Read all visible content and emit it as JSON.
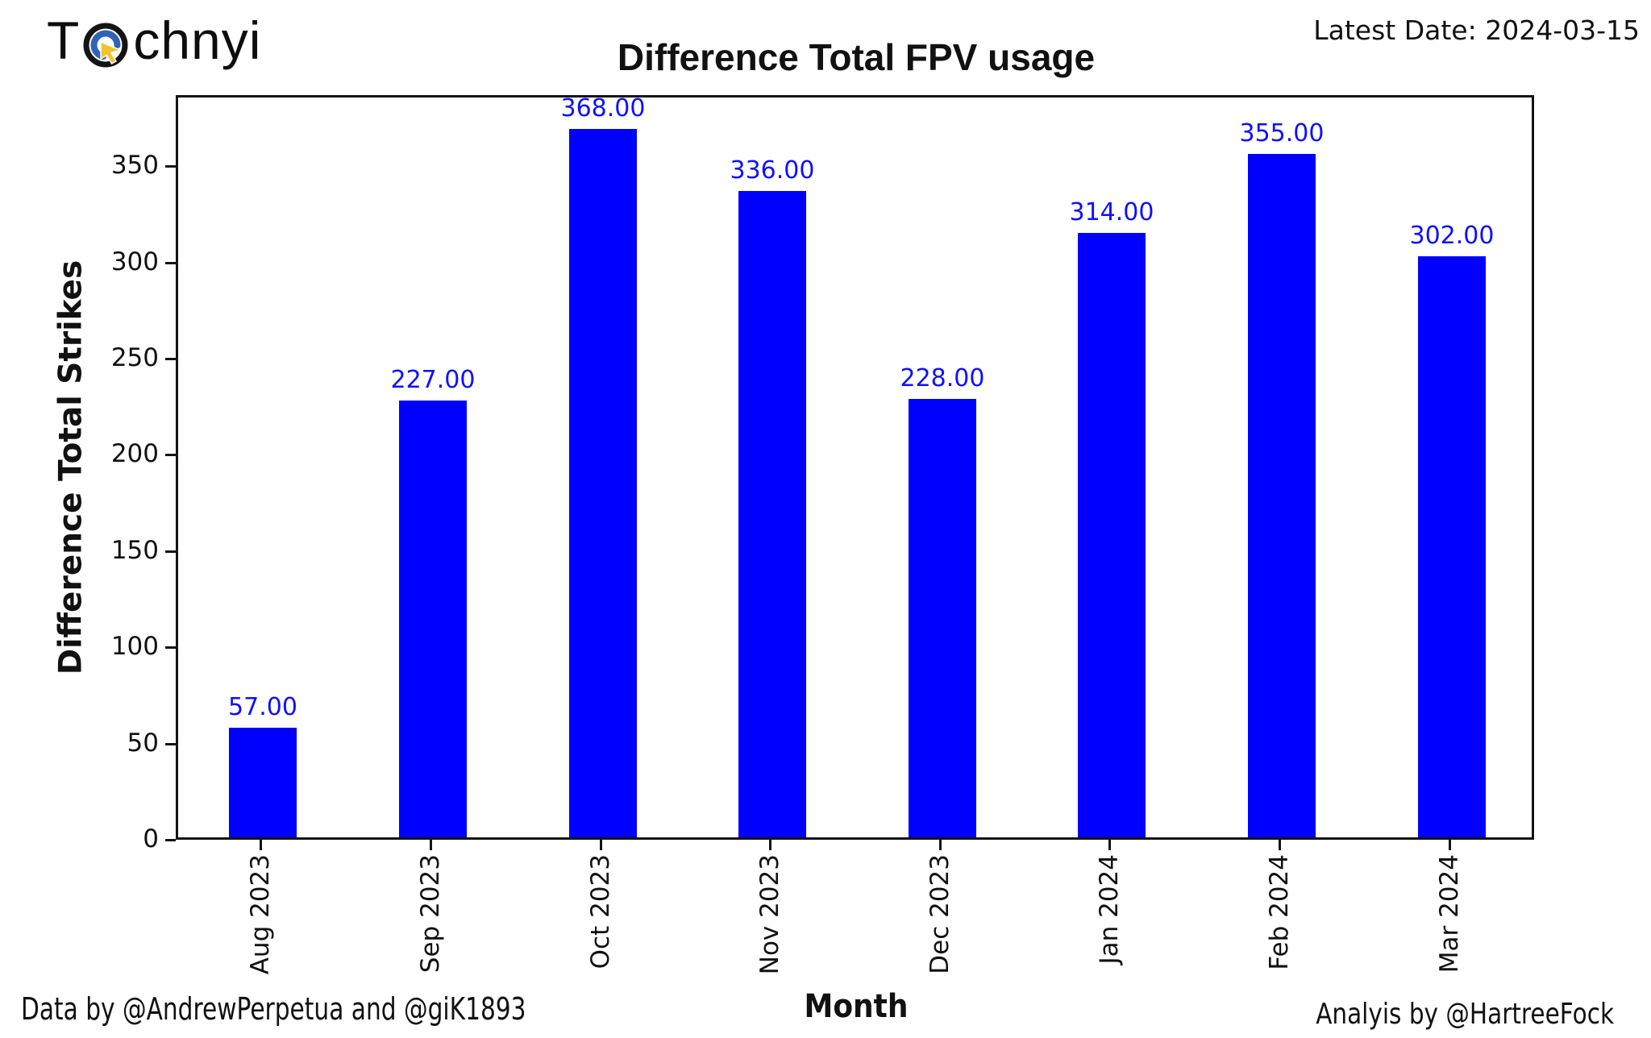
{
  "branding": {
    "logo_prefix": "T",
    "logo_suffix": "chnyi",
    "logo_icon": "target-cursor-icon"
  },
  "header": {
    "latest_date": "Latest Date: 2024-03-15"
  },
  "chart_data": {
    "type": "bar",
    "title": "Difference Total FPV usage",
    "xlabel": "Month",
    "ylabel": "Difference Total Strikes",
    "categories": [
      "Aug 2023",
      "Sep 2023",
      "Oct 2023",
      "Nov 2023",
      "Dec 2023",
      "Jan 2024",
      "Feb 2024",
      "Mar 2024"
    ],
    "values": [
      57,
      227,
      368,
      336,
      228,
      314,
      355,
      302
    ],
    "value_labels": [
      "57.00",
      "227.00",
      "368.00",
      "336.00",
      "228.00",
      "314.00",
      "355.00",
      "302.00"
    ],
    "y_ticks": [
      0,
      50,
      100,
      150,
      200,
      250,
      300,
      350
    ],
    "y_tick_labels": [
      "0",
      "50",
      "100",
      "150",
      "200",
      "250",
      "300",
      "350"
    ],
    "ylim": [
      0,
      387
    ],
    "grid": false,
    "legend": "none",
    "bar_width_fraction": 0.4
  },
  "colors": {
    "bar_blue": "#0000ff",
    "value_label_blue": "#1010ff",
    "axis_black": "#141414",
    "logo_ring_black": "#141414",
    "logo_ring_blue": "#2f63b5",
    "logo_cursor_yellow": "#f2c230"
  },
  "footer": {
    "left": "Data by @AndrewPerpetua and @giK1893",
    "right": "Analyis by @HartreeFock"
  }
}
